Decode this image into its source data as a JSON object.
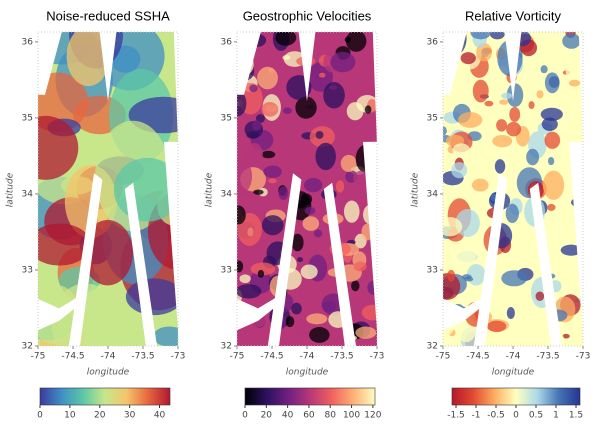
{
  "chart_data": [
    {
      "type": "heatmap",
      "title": "Noise-reduced SSHA",
      "xlabel": "longitude",
      "ylabel": "latitude",
      "xlim": [
        -75,
        -73
      ],
      "xticks": [
        -75,
        -74.5,
        -74,
        -73.5,
        -73
      ],
      "ylim": [
        32,
        36.13
      ],
      "yticks": [
        32,
        33,
        34,
        35,
        36
      ],
      "clim": [
        0,
        43.5
      ],
      "cticks": [
        0,
        10,
        20,
        30,
        40
      ],
      "colormap": [
        "#3b3b9e",
        "#3f8fc6",
        "#5cc8a6",
        "#c8e68a",
        "#f5c46a",
        "#e8653f",
        "#b01830"
      ]
    },
    {
      "type": "heatmap",
      "title": "Geostrophic Velocities",
      "xlabel": "longitude",
      "ylabel": "latitude",
      "xlim": [
        -75,
        -73
      ],
      "xticks": [
        -75,
        -74.5,
        -74,
        -73.5,
        -73
      ],
      "ylim": [
        32,
        36.13
      ],
      "yticks": [
        32,
        33,
        34,
        35,
        36
      ],
      "clim": [
        0,
        122
      ],
      "cticks": [
        0,
        20,
        40,
        60,
        80,
        100,
        120
      ],
      "colormap": [
        "#000004",
        "#2c115f",
        "#721f81",
        "#b73779",
        "#f1605d",
        "#feb078",
        "#fcfdbf"
      ]
    },
    {
      "type": "heatmap",
      "title": "Relative Vorticity",
      "xlabel": "longitude",
      "ylabel": "latitude",
      "xlim": [
        -75,
        -73
      ],
      "xticks": [
        -75,
        -74.5,
        -74,
        -73.5,
        -73
      ],
      "ylim": [
        32,
        36.13
      ],
      "yticks": [
        32,
        33,
        34,
        35,
        36
      ],
      "clim": [
        -1.6,
        1.6
      ],
      "cticks": [
        -1.5,
        -1,
        -0.5,
        0,
        0.5,
        1,
        1.5
      ],
      "colormap": [
        "#b2182b",
        "#e34a33",
        "#fdae61",
        "#ffffbf",
        "#abd9e9",
        "#4575b4",
        "#253494"
      ]
    }
  ]
}
